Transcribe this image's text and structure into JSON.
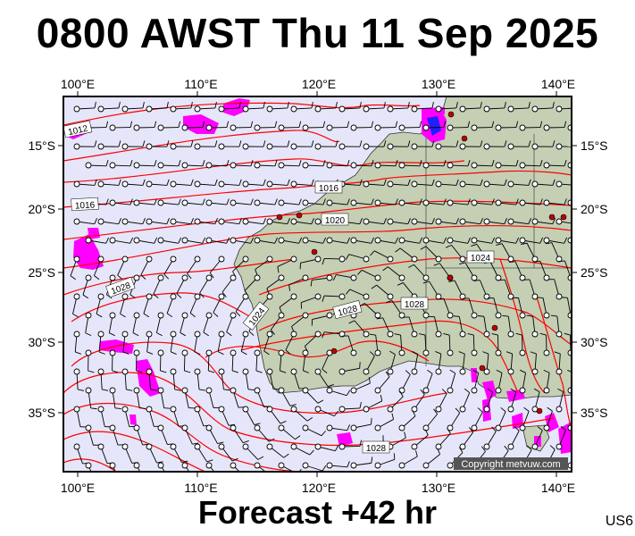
{
  "header": {
    "title": "0800 AWST Thu 11 Sep 2025"
  },
  "footer": {
    "forecast": "Forecast +42 hr",
    "model_code": "US6"
  },
  "copyright": "Copyright metvuw.com",
  "axes": {
    "lon_labels": [
      "100°E",
      "110°E",
      "120°E",
      "130°E",
      "140°E"
    ],
    "lat_labels": [
      "15°S",
      "20°S",
      "25°S",
      "30°S",
      "35°S"
    ]
  },
  "isobar_labels": [
    "1012",
    "1016",
    "1016",
    "1020",
    "1024",
    "1024",
    "1028",
    "1028",
    "1028"
  ],
  "colors": {
    "ocean": "#e6e6fa",
    "land": "#c4cfb4",
    "isobar": "#ff0000",
    "rain_light": "#ff00ff",
    "rain_heavy": "#2020ff",
    "city": "#c00000"
  }
}
